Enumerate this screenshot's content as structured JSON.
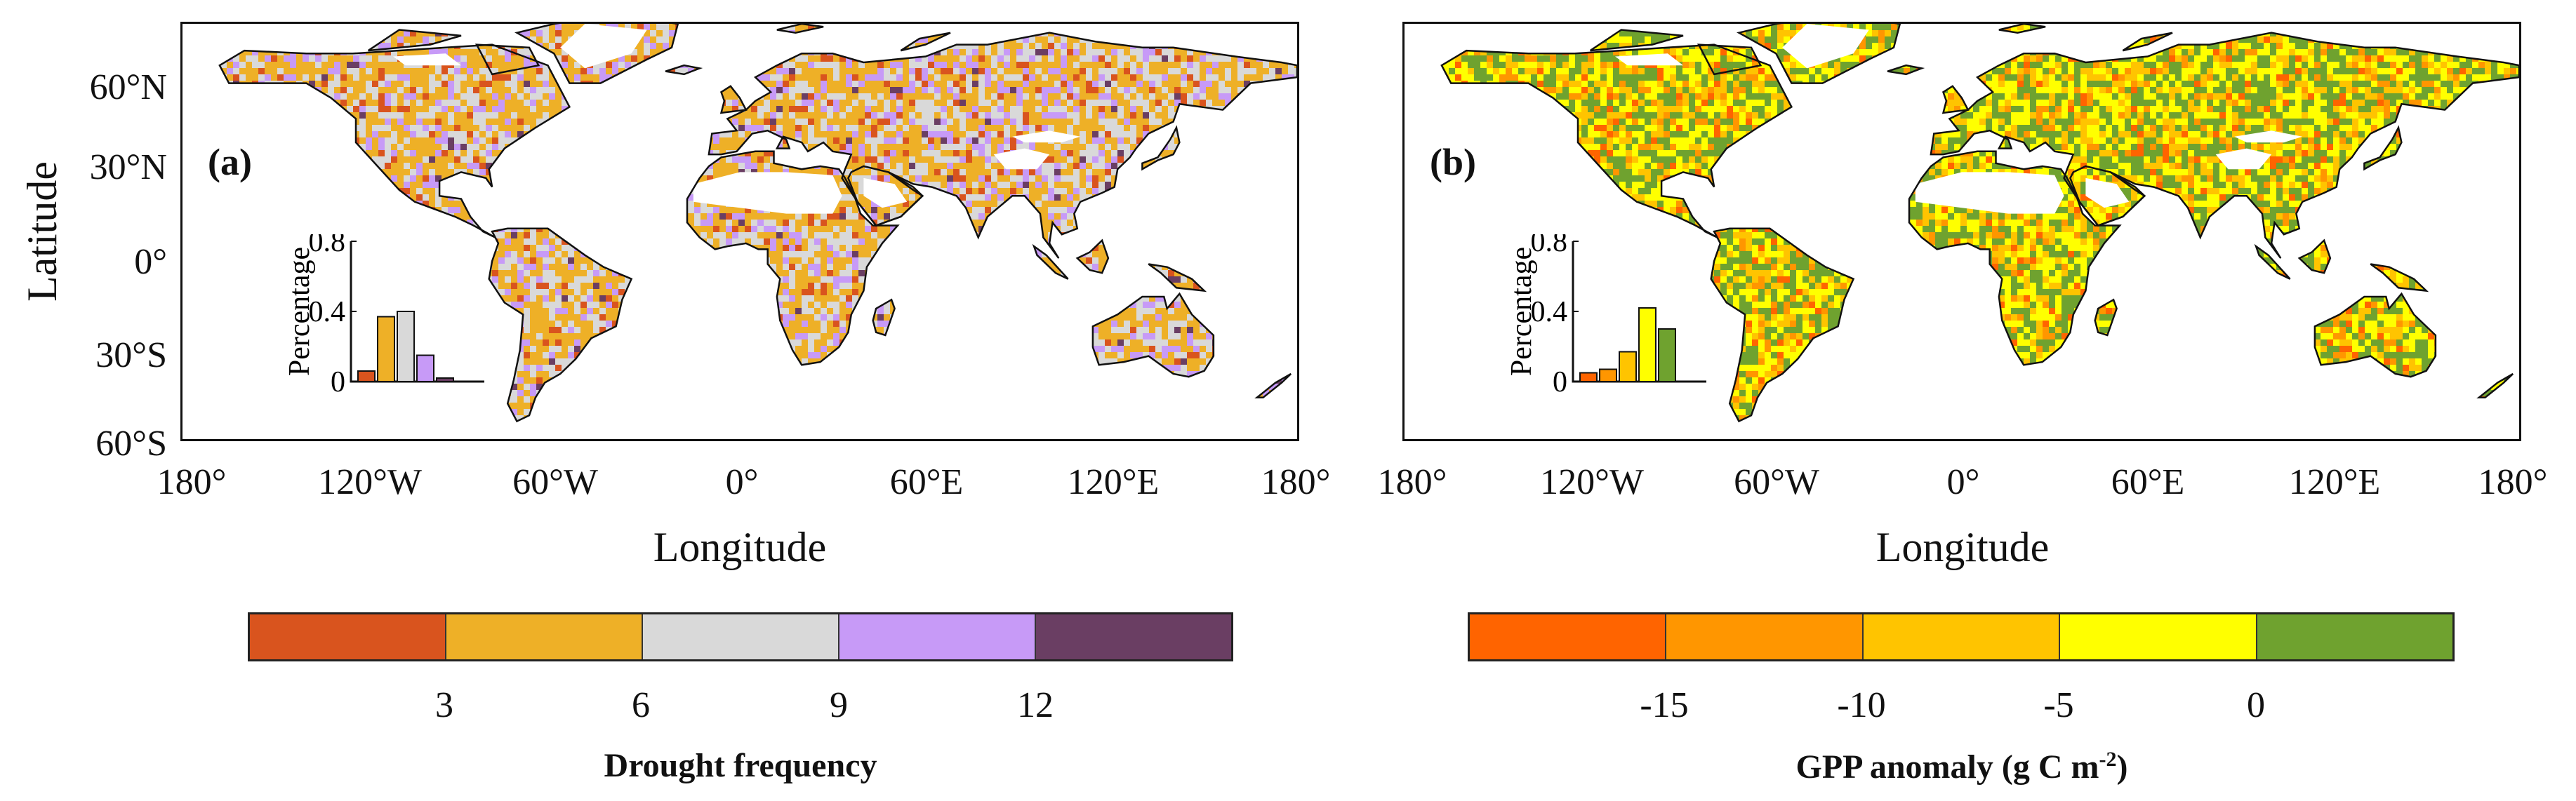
{
  "figure": {
    "panels": [
      {
        "id": "a",
        "label": "(a)",
        "variable": "Drought frequency",
        "x_ticks": [
          "180°",
          "120°W",
          "60°W",
          "0°",
          "60°E",
          "120°E",
          "180°"
        ],
        "y_ticks": [
          "60°N",
          "30°N",
          "0°",
          "30°S",
          "60°S"
        ],
        "x_title": "Longitude",
        "y_title": "Latitude",
        "inset": {
          "y_title": "Percentage",
          "y_ticks": [
            "0",
            "0.4",
            "0.8"
          ],
          "bar_values": [
            0.06,
            0.37,
            0.4,
            0.15,
            0.02
          ],
          "bar_colors": [
            "#d9541e",
            "#eeb027",
            "#d9d9d9",
            "#c79af7",
            "#6a3e63"
          ]
        },
        "colorbar": {
          "title": "Drought frequency",
          "colors": [
            "#d9541e",
            "#eeb027",
            "#d9d9d9",
            "#c79af7",
            "#6a3e63"
          ],
          "ticks": [
            "3",
            "6",
            "9",
            "12"
          ]
        }
      },
      {
        "id": "b",
        "label": "(b)",
        "variable": "GPP anomaly",
        "x_ticks": [
          "180°",
          "120°W",
          "60°W",
          "0°",
          "60°E",
          "120°E",
          "180°"
        ],
        "x_title": "Longitude",
        "inset": {
          "y_title": "Percentage",
          "y_ticks": [
            "0",
            "0.4",
            "0.8"
          ],
          "bar_values": [
            0.05,
            0.07,
            0.17,
            0.42,
            0.3
          ],
          "bar_colors": [
            "#ff6400",
            "#ff9600",
            "#ffc400",
            "#ffff00",
            "#6fa22f"
          ]
        },
        "colorbar": {
          "title_main": "GPP anomaly (g C m",
          "title_sup": "-2",
          "title_end": ")",
          "colors": [
            "#ff6400",
            "#ff9600",
            "#ffc400",
            "#ffff00",
            "#6fa22f"
          ],
          "ticks": [
            "-15",
            "-10",
            "-5",
            "0"
          ]
        }
      }
    ]
  }
}
